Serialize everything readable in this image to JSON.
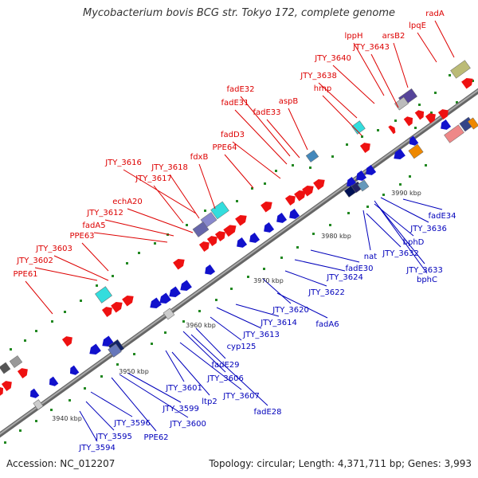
{
  "title": "Mycobacterium bovis BCG str. Tokyo 172, complete genome",
  "footer": {
    "accession": "Accession: NC_012207",
    "topology": "Topology: circular; Length: 4,371,711 bp; Genes: 3,993"
  },
  "colors": {
    "forward_genes": "#ee1111",
    "reverse_genes": "#1111cc",
    "forward_labels": "#dd0000",
    "reverse_labels": "#0000bb",
    "backbone": "#888888",
    "gc_marks": "#228822",
    "special_cyan": "#33dddd",
    "special_orange": "#ee8800"
  },
  "kbp_ticks": [
    "3940 kbp",
    "3950 kbp",
    "3960 kbp",
    "3970 kbp",
    "3980 kbp",
    "3990 kbp"
  ],
  "forward_labels": [
    "radA",
    "lpqE",
    "arsB2",
    "lppH",
    "JTY_3643",
    "JTY_3640",
    "JTY_3638",
    "hmp",
    "aspB",
    "fadE32",
    "fadE31",
    "fadE33",
    "fadD3",
    "PPE64",
    "fdxB",
    "JTY_3616",
    "JTY_3618",
    "JTY_3617",
    "echA20",
    "JTY_3612",
    "fadA5",
    "PPE63",
    "JTY_3603",
    "JTY_3602",
    "PPE61"
  ],
  "reverse_labels": [
    "JTY_3594",
    "JTY_3595",
    "JTY_3596",
    "PPE62",
    "JTY_3600",
    "JTY_3599",
    "ltp2",
    "JTY_3601",
    "JTY_3607",
    "fadE28",
    "JTY_3606",
    "fadE29",
    "cyp125",
    "JTY_3613",
    "JTY_3614",
    "fadA6",
    "JTY_3620",
    "JTY_3622",
    "JTY_3624",
    "fadE30",
    "nat",
    "JTY_3632",
    "JTY_3633",
    "bphC",
    "bphD",
    "JTY_3636",
    "fadE34"
  ]
}
